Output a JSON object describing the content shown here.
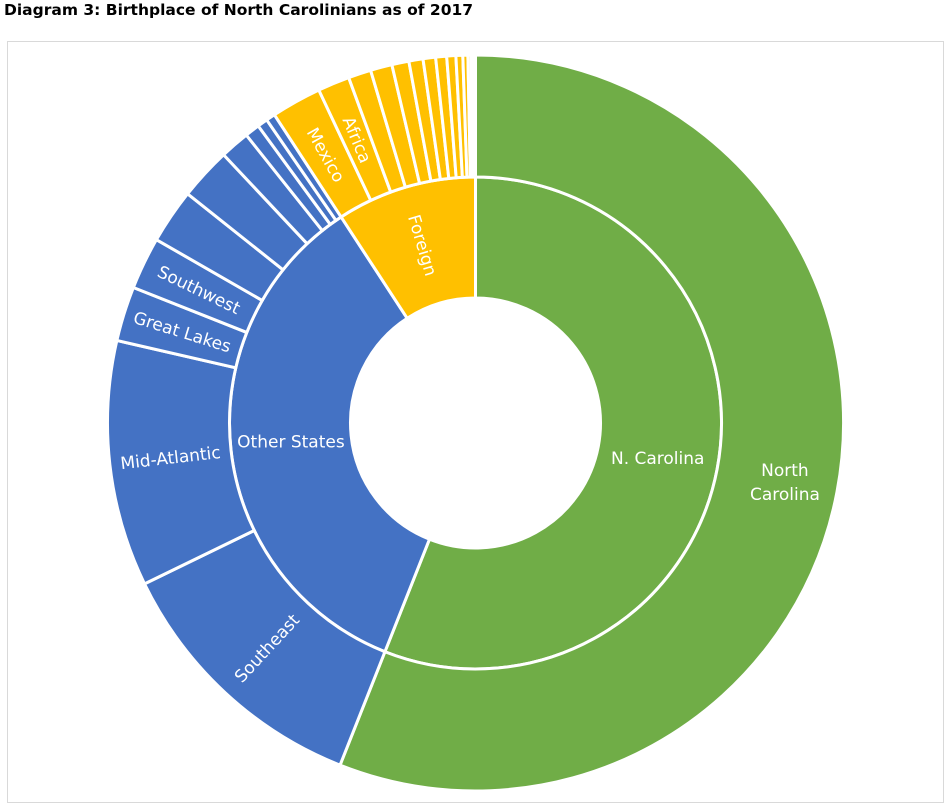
{
  "chart_data": {
    "type": "sunburst",
    "title": "Diagram 3: Birthplace of North Carolinians as of 2017",
    "colors": {
      "north_carolina": "#70AD47",
      "other_states": "#4472C4",
      "foreign": "#FFC000",
      "separator": "#FFFFFF"
    },
    "inner": [
      {
        "label": "N. Carolina",
        "value": 56.0,
        "group": "north_carolina"
      },
      {
        "label": "Other States",
        "value": 34.8,
        "group": "other_states"
      },
      {
        "label": "Foreign",
        "value": 9.2,
        "group": "foreign"
      }
    ],
    "outer": [
      {
        "label": "North Carolina",
        "lines": [
          "North",
          "Carolina"
        ],
        "value": 56.0,
        "group": "north_carolina"
      },
      {
        "label": "Southeast",
        "value": 11.8,
        "group": "other_states"
      },
      {
        "label": "Mid-Atlantic",
        "value": 10.8,
        "group": "other_states"
      },
      {
        "label": "Great Lakes",
        "value": 2.4,
        "group": "other_states"
      },
      {
        "label": "Southwest",
        "value": 2.3,
        "group": "other_states"
      },
      {
        "label": "",
        "value": 2.4,
        "group": "other_states"
      },
      {
        "label": "",
        "value": 2.3,
        "group": "other_states"
      },
      {
        "label": "",
        "value": 1.3,
        "group": "other_states"
      },
      {
        "label": "",
        "value": 0.65,
        "group": "other_states"
      },
      {
        "label": "",
        "value": 0.45,
        "group": "other_states"
      },
      {
        "label": "",
        "value": 0.4,
        "group": "other_states"
      },
      {
        "label": "Mexico",
        "value": 2.2,
        "group": "foreign"
      },
      {
        "label": "Africa",
        "value": 1.4,
        "group": "foreign"
      },
      {
        "label": "",
        "value": 1.0,
        "group": "foreign"
      },
      {
        "label": "",
        "value": 0.95,
        "group": "foreign"
      },
      {
        "label": "",
        "value": 0.75,
        "group": "foreign"
      },
      {
        "label": "",
        "value": 0.62,
        "group": "foreign"
      },
      {
        "label": "",
        "value": 0.55,
        "group": "foreign"
      },
      {
        "label": "",
        "value": 0.48,
        "group": "foreign"
      },
      {
        "label": "",
        "value": 0.4,
        "group": "foreign"
      },
      {
        "label": "",
        "value": 0.3,
        "group": "foreign"
      },
      {
        "label": "",
        "value": 0.22,
        "group": "foreign"
      },
      {
        "label": "",
        "value": 0.14,
        "group": "foreign"
      },
      {
        "label": "",
        "value": 0.1,
        "group": "foreign"
      },
      {
        "label": "",
        "value": 0.06,
        "group": "foreign"
      },
      {
        "label": "",
        "value": 0.03,
        "group": "foreign"
      }
    ]
  }
}
